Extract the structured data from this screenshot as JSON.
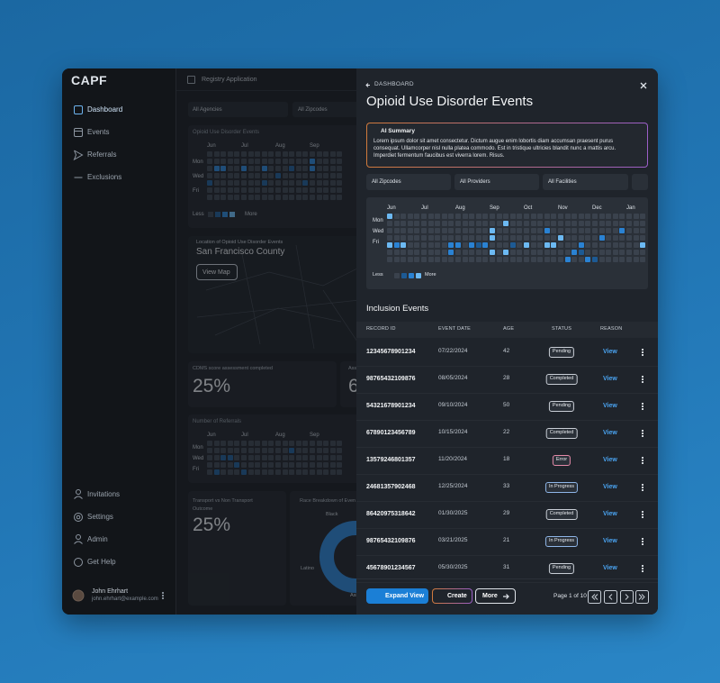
{
  "sidebar": {
    "logo": "CAPF",
    "nav": [
      "Dashboard",
      "Events",
      "Referrals",
      "Exclusions"
    ],
    "footer_nav": [
      "Invitations",
      "Settings",
      "Admin",
      "Get Help"
    ],
    "user": {
      "name": "John Ehrhart",
      "email": "john.ehrhart@example.com"
    }
  },
  "topbar": {
    "title": "Registry Application"
  },
  "background": {
    "filters": [
      "All Agencies",
      "All Zipcodes"
    ],
    "events_card": {
      "title": "Opioid Use Disorder Events",
      "months": [
        "Jun",
        "Jul",
        "Aug",
        "Sep"
      ],
      "days": [
        "Mon",
        "Wed",
        "Fri"
      ],
      "legend": [
        "Less",
        "More"
      ],
      "levels": [
        [
          0,
          0,
          0,
          0,
          0,
          0,
          0,
          0,
          0,
          0,
          0,
          0,
          0,
          0,
          0,
          0,
          0,
          0,
          0,
          0
        ],
        [
          0,
          0,
          0,
          0,
          0,
          0,
          0,
          0,
          0,
          0,
          0,
          0,
          0,
          0,
          0,
          2,
          0,
          0,
          0,
          0
        ],
        [
          0,
          2,
          2,
          0,
          0,
          2,
          0,
          0,
          2,
          0,
          0,
          0,
          1,
          0,
          0,
          2,
          0,
          0,
          0,
          0
        ],
        [
          0,
          0,
          0,
          0,
          0,
          0,
          0,
          0,
          0,
          0,
          1,
          0,
          0,
          0,
          0,
          0,
          0,
          0,
          0,
          0
        ],
        [
          1,
          0,
          0,
          0,
          0,
          0,
          0,
          0,
          1,
          0,
          0,
          0,
          0,
          0,
          1,
          0,
          0,
          0,
          0,
          0
        ],
        [
          0,
          0,
          0,
          0,
          0,
          0,
          0,
          0,
          0,
          0,
          0,
          0,
          0,
          0,
          0,
          0,
          0,
          0,
          0,
          0
        ],
        [
          0,
          0,
          0,
          0,
          0,
          0,
          0,
          0,
          0,
          0,
          0,
          0,
          0,
          0,
          0,
          0,
          0,
          0,
          0,
          0
        ]
      ]
    },
    "map_card": {
      "title": "Location of Opioid Use Disorder Events",
      "county": "San Francisco County",
      "button": "View Map"
    },
    "score_card": {
      "title": "CDMS score assessment completed",
      "value": "25%"
    },
    "partial_card": {
      "title": "Ass",
      "value": "6"
    },
    "referrals_card": {
      "title": "Number of Referrals",
      "months": [
        "Jun",
        "Jul",
        "Aug",
        "Sep"
      ],
      "days": [
        "Mon",
        "Wed",
        "Fri"
      ],
      "levels": [
        [
          0,
          0,
          0,
          0,
          0,
          0,
          0,
          0,
          0,
          0,
          0,
          0,
          0,
          0,
          0,
          0,
          0,
          0,
          0,
          0
        ],
        [
          0,
          0,
          0,
          0,
          0,
          0,
          0,
          0,
          0,
          0,
          0,
          0,
          1,
          0,
          0,
          0,
          0,
          0,
          0,
          0
        ],
        [
          0,
          0,
          1,
          1,
          0,
          0,
          0,
          0,
          0,
          0,
          0,
          0,
          0,
          0,
          0,
          0,
          0,
          0,
          0,
          0
        ],
        [
          0,
          0,
          0,
          0,
          1,
          0,
          0,
          0,
          0,
          0,
          0,
          0,
          0,
          0,
          0,
          0,
          0,
          0,
          0,
          0
        ],
        [
          0,
          1,
          0,
          0,
          0,
          1,
          0,
          0,
          0,
          0,
          0,
          0,
          0,
          0,
          0,
          0,
          0,
          0,
          0,
          0
        ]
      ]
    },
    "transport_card": {
      "title": "Transport vs Non Transport Outcome",
      "value": "25%"
    },
    "race_card": {
      "title": "Race Breakdown of Even",
      "labels": [
        "Black",
        "Latino",
        "Asi"
      ]
    }
  },
  "panel": {
    "breadcrumb": "DASHBOARD",
    "title": "Opioid Use Disorder Events",
    "ai_summary": {
      "title": "AI Summary",
      "text": "Lorem ipsum dolor sit amet consectetur. Dictum augue enim lobortis diam accumsan praesent purus consequat. Ullamcorper nisl nulla platea commodo. Est in tristique ultricies blandit nunc a mattis arcu. Imperdiet fermentum faucibus est viverra lorem. Risus."
    },
    "filters": [
      "All Zipcodes",
      "All Providers",
      "All Facilities"
    ],
    "heatmap": {
      "months": [
        "Jun",
        "Jul",
        "Aug",
        "Sep",
        "Oct",
        "Nov",
        "Dec",
        "Jan"
      ],
      "days": [
        "Mon",
        "Wed",
        "Fri"
      ],
      "legend": [
        "Less",
        "More"
      ],
      "level_colors": [
        "#3a424d",
        "#1d5a94",
        "#2a82d3",
        "#6cb9f2"
      ],
      "levels": [
        [
          3,
          0,
          0,
          0,
          0,
          0,
          0,
          0,
          0,
          0,
          0,
          0,
          0,
          0,
          0,
          0,
          0,
          0,
          0,
          0,
          0,
          0,
          0,
          0,
          0,
          0,
          0,
          0,
          0,
          0,
          0,
          0,
          0,
          0,
          0,
          0,
          0,
          0
        ],
        [
          0,
          0,
          0,
          0,
          0,
          0,
          0,
          0,
          0,
          0,
          0,
          0,
          0,
          0,
          0,
          0,
          0,
          3,
          0,
          0,
          0,
          0,
          0,
          0,
          0,
          0,
          0,
          0,
          0,
          0,
          0,
          0,
          0,
          0,
          0,
          0,
          0,
          0
        ],
        [
          0,
          0,
          0,
          0,
          0,
          0,
          0,
          0,
          0,
          0,
          0,
          0,
          0,
          0,
          0,
          3,
          0,
          0,
          0,
          0,
          0,
          0,
          0,
          2,
          0,
          0,
          0,
          0,
          0,
          0,
          0,
          0,
          0,
          0,
          2,
          0,
          0,
          0
        ],
        [
          0,
          0,
          0,
          0,
          0,
          0,
          0,
          0,
          0,
          0,
          0,
          0,
          0,
          0,
          0,
          3,
          0,
          0,
          0,
          0,
          0,
          0,
          0,
          0,
          0,
          3,
          0,
          0,
          0,
          0,
          0,
          2,
          0,
          0,
          0,
          0,
          0,
          0
        ],
        [
          3,
          2,
          3,
          0,
          0,
          0,
          0,
          0,
          0,
          2,
          2,
          0,
          2,
          1,
          2,
          0,
          0,
          0,
          1,
          0,
          3,
          0,
          0,
          3,
          3,
          0,
          0,
          0,
          2,
          0,
          0,
          0,
          0,
          0,
          0,
          0,
          0,
          3
        ],
        [
          0,
          0,
          0,
          0,
          0,
          0,
          0,
          0,
          0,
          2,
          0,
          0,
          0,
          0,
          0,
          3,
          0,
          3,
          0,
          0,
          0,
          0,
          0,
          0,
          0,
          0,
          0,
          2,
          1,
          0,
          0,
          0,
          0,
          0,
          0,
          0,
          0,
          0
        ],
        [
          0,
          0,
          0,
          0,
          0,
          0,
          0,
          0,
          0,
          0,
          0,
          0,
          0,
          0,
          0,
          0,
          0,
          0,
          0,
          0,
          0,
          0,
          0,
          0,
          0,
          0,
          2,
          0,
          0,
          2,
          1,
          0,
          0,
          0,
          0,
          0,
          0,
          0
        ]
      ]
    },
    "table": {
      "title": "Inclusion Events",
      "columns": [
        "RECORD ID",
        "EVENT DATE",
        "AGE",
        "STATUS",
        "REASON"
      ],
      "rows": [
        {
          "record_id": "12345678901234",
          "event_date": "07/22/2024",
          "age": 42,
          "status": "Pending",
          "status_color": "#c9ced6",
          "reason": "View"
        },
        {
          "record_id": "98765432109876",
          "event_date": "08/05/2024",
          "age": 28,
          "status": "Completed",
          "status_color": "#c9ced6",
          "reason": "View"
        },
        {
          "record_id": "54321678901234",
          "event_date": "09/10/2024",
          "age": 50,
          "status": "Pending",
          "status_color": "#c9ced6",
          "reason": "View"
        },
        {
          "record_id": "67890123456789",
          "event_date": "10/15/2024",
          "age": 22,
          "status": "Completed",
          "status_color": "#c9ced6",
          "reason": "View"
        },
        {
          "record_id": "13579246801357",
          "event_date": "11/20/2024",
          "age": 18,
          "status": "Error",
          "status_color": "#e48aa8",
          "reason": "View"
        },
        {
          "record_id": "24681357902468",
          "event_date": "12/25/2024",
          "age": 33,
          "status": "In Progress",
          "status_color": "#8fb6e8",
          "reason": "View"
        },
        {
          "record_id": "86420975318642",
          "event_date": "01/30/2025",
          "age": 29,
          "status": "Completed",
          "status_color": "#c9ced6",
          "reason": "View"
        },
        {
          "record_id": "98765432109876",
          "event_date": "03/21/2025",
          "age": 21,
          "status": "In Progress",
          "status_color": "#8fb6e8",
          "reason": "View"
        },
        {
          "record_id": "45678901234567",
          "event_date": "05/30/2025",
          "age": 31,
          "status": "Pending",
          "status_color": "#c9ced6",
          "reason": "View"
        }
      ]
    },
    "footer": {
      "buttons": [
        "Expand View",
        "Create",
        "More"
      ],
      "pagination": "Page 1 of 10"
    }
  }
}
